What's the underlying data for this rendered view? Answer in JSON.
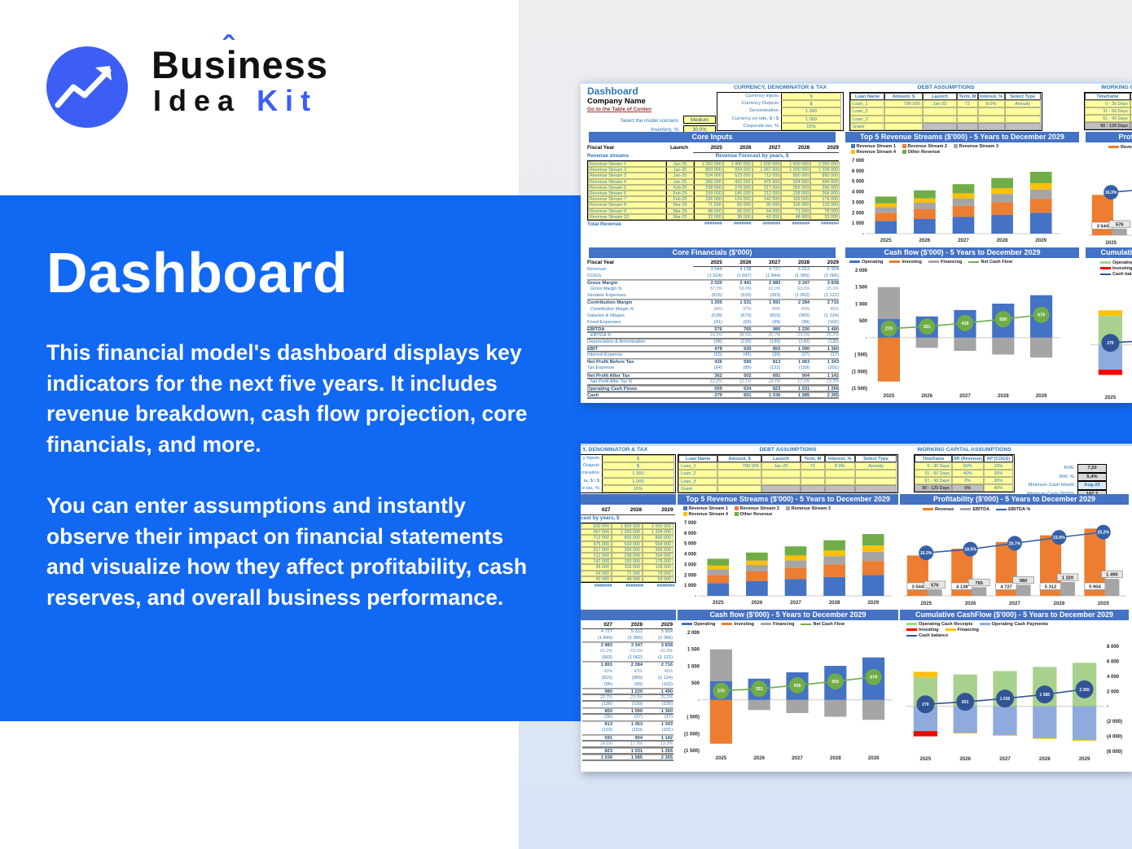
{
  "brand": {
    "word1_a": "Bus",
    "word1_i": "i",
    "word1_b": "ness",
    "caret": "ˆ",
    "word2": "Idea",
    "word3": "Kit"
  },
  "hero": {
    "title": "Dashboard",
    "para1": "This financial model's dashboard displays key indicators for the next five years. It includes revenue breakdown, cash flow projection, core financials, and more.",
    "para2": "You can enter assumptions and instantly observe their impact on financial statements and visualize how they affect profitability, cash reserves, and overall business performance."
  },
  "colors": {
    "accent_blue": "#1168f2",
    "logo_blue": "#3c5ef5",
    "banner": "#4472c4",
    "bar_blue": "#4472C4",
    "bar_orange": "#ED7D31",
    "bar_gray": "#A5A5A5",
    "bar_yellow": "#FFC000",
    "bar_green": "#70AD47",
    "bar_lightgreen": "#A9D18E",
    "bar_lightblue": "#8FAADC",
    "bar_red": "#FF0000",
    "line_navy": "#305496",
    "cell_yellow": "#ffff9e",
    "label_blue": "#2e75b6",
    "link_red": "#953634"
  },
  "dash": {
    "header": {
      "title": "Dashboard",
      "company": "Company Name",
      "link": "Go to the Table of Conten",
      "scenario_label": "Select the model scenario",
      "scenario_value": "Medium",
      "inventory_label": "Inventory, %",
      "inventory_value": "30.0%"
    },
    "currency": {
      "title": "CURRENCY, DENOMINATOR & TAX",
      "cut_title": "Y, DENOMINATOR & TAX",
      "rows": [
        [
          "Currency Inputs",
          "$"
        ],
        [
          "Currency Outputs",
          "$"
        ],
        [
          "Denomination",
          "1 000"
        ],
        [
          "Currency ex rate, $ / $",
          "1.000"
        ],
        [
          "Corporate tax, %",
          "15%"
        ]
      ],
      "cut_labels": [
        "y Inputs",
        "Outputs",
        "mination",
        "ta, $ / $",
        "e tax, %"
      ]
    },
    "debt": {
      "title": "DEBT ASSUMPTIONS",
      "headers": [
        "Loan Name",
        "Amount, $",
        "Launch",
        "Term, M",
        "Interest, %",
        "Select Type"
      ],
      "rows": [
        [
          "Loan_1",
          "700 000",
          "Jan-25",
          "72",
          "8.0%",
          "Annuity"
        ],
        [
          "Loan_2",
          "",
          "",
          "",
          "",
          ""
        ],
        [
          "Loan_3",
          "",
          "",
          "",
          "",
          ""
        ],
        [
          "Grant",
          "",
          "",
          "",
          "",
          ""
        ]
      ]
    },
    "wc": {
      "title": "WORKING CAPITAL ASSUMPTIONS",
      "headers": [
        "Timeframe",
        "AR (Revenue)",
        "AP (COGS)"
      ],
      "rows": [
        [
          "0 - 30 Days",
          "60%",
          "10%"
        ],
        [
          "31 - 60 Days",
          "40%",
          "20%"
        ],
        [
          "61 - 90 Days",
          "0%",
          "30%"
        ],
        [
          "90 - 120 Days",
          "0%",
          "40%"
        ]
      ]
    },
    "kpis": [
      [
        "ROE",
        "7,20"
      ],
      [
        "IRR, %",
        "5,4%"
      ],
      [
        "Minimum Cash Month",
        "Aug-25"
      ],
      [
        "Minimum Cash ($'000)",
        "187,2"
      ]
    ],
    "core_inputs": {
      "banner": "Core Inputs",
      "fiscal_year": "Fiscal Year",
      "launch": "Launch",
      "years": [
        "2025",
        "2026",
        "2027",
        "2028",
        "2029"
      ],
      "cut_years": [
        "027",
        "2028",
        "2029"
      ],
      "streams_label": "Revenue streams",
      "forecast_label": "Revenue Forecast by years, $",
      "cut_forecast_label": "cast by years, $",
      "total_label": "Total Revenue",
      "hash": "#######",
      "streams": [
        {
          "name": "Revenue Stream 1",
          "launch": "Jan-25",
          "v": [
            "1 200 000",
            "1 400 000",
            "1 600 000",
            "1 800 000",
            "2 000 000"
          ]
        },
        {
          "name": "Revenue Stream 2",
          "launch": "Jan-25",
          "v": [
            "800 000",
            "934 000",
            "1 067 000",
            "1 200 000",
            "1 334 000"
          ]
        },
        {
          "name": "Revenue Stream 3",
          "launch": "Jan-25",
          "v": [
            "534 000",
            "623 000",
            "712 000",
            "800 000",
            "890 000"
          ]
        },
        {
          "name": "Revenue Stream 4",
          "launch": "Jan-25",
          "v": [
            "356 000",
            "416 000",
            "475 000",
            "534 000",
            "594 000"
          ]
        },
        {
          "name": "Revenue Stream 5",
          "launch": "Feb-25",
          "v": [
            "238 000",
            "278 000",
            "317 000",
            "356 000",
            "396 000"
          ]
        },
        {
          "name": "Revenue Stream 6",
          "launch": "Feb-25",
          "v": [
            "159 000",
            "186 000",
            "212 000",
            "238 000",
            "264 000"
          ]
        },
        {
          "name": "Revenue Stream 7",
          "launch": "Feb-25",
          "v": [
            "106 000",
            "124 000",
            "142 000",
            "159 000",
            "176 000"
          ]
        },
        {
          "name": "Revenue Stream 8",
          "launch": "Mar-25",
          "v": [
            "71 000",
            "83 000",
            "95 000",
            "106 000",
            "118 000"
          ]
        },
        {
          "name": "Revenue Stream 9",
          "launch": "Mar-25",
          "v": [
            "48 000",
            "56 000",
            "64 000",
            "71 000",
            "79 000"
          ]
        },
        {
          "name": "Revenue Stream 10",
          "launch": "Mar-25",
          "v": [
            "32 000",
            "38 000",
            "43 000",
            "48 000",
            "53 000"
          ]
        }
      ],
      "cut_forecast": [
        [
          "600 000",
          "1 800 000",
          "2 000 000"
        ],
        [
          "067 000",
          "1 200 000",
          "1 334 000"
        ],
        [
          "712 000",
          "800 000",
          "890 000"
        ],
        [
          "475 000",
          "534 000",
          "594 000"
        ],
        [
          "317 000",
          "356 000",
          "396 000"
        ],
        [
          "212 000",
          "238 000",
          "264 000"
        ],
        [
          "142 000",
          "159 000",
          "176 000"
        ],
        [
          "95 000",
          "106 000",
          "118 000"
        ],
        [
          "64 000",
          "71 000",
          "79 000"
        ],
        [
          "43 000",
          "48 000",
          "53 000"
        ]
      ]
    },
    "financials": {
      "banner": "Core Financials ($'000)",
      "fiscal_year": "Fiscal Year",
      "rows": [
        {
          "l": "Revenue",
          "s": "p",
          "v": [
            "3 544",
            "4 138",
            "4 727",
            "5 312",
            "5 904"
          ]
        },
        {
          "l": "COGS",
          "s": "p u",
          "v": [
            "(1 524)",
            "(1 697)",
            "(1 844)",
            "(1 965)",
            "(2 066)"
          ]
        },
        {
          "l": "Gross Margin",
          "s": "b",
          "v": [
            "2 020",
            "2 441",
            "2 883",
            "3 347",
            "3 838"
          ]
        },
        {
          "l": "Gross Margin %",
          "s": "i",
          "v": [
            "57.0%",
            "59.0%",
            "61.0%",
            "63.0%",
            "65.0%"
          ]
        },
        {
          "l": "Variable Expenses",
          "s": "p u",
          "v": [
            "(815)",
            "(910)",
            "(993)",
            "(1 062)",
            "(1 122)"
          ]
        },
        {
          "l": "Contribution Margin",
          "s": "b",
          "v": [
            "1 205",
            "1 531",
            "1 891",
            "2 284",
            "2 716"
          ]
        },
        {
          "l": "Contribution Margin %",
          "s": "i",
          "v": [
            "34%",
            "37%",
            "40%",
            "43%",
            "46%"
          ]
        },
        {
          "l": "Salaries & Wages",
          "s": "p",
          "v": [
            "(538)",
            "(673)",
            "(815)",
            "(965)",
            "(1 124)"
          ]
        },
        {
          "l": "Fixed Expenses",
          "s": "p u",
          "v": [
            "(91)",
            "(93)",
            "(96)",
            "(99)",
            "(102)"
          ]
        },
        {
          "l": "EBITDA",
          "s": "b d",
          "v": [
            "576",
            "765",
            "980",
            "1 220",
            "1 490"
          ]
        },
        {
          "l": "EBITDA %",
          "s": "i d",
          "v": [
            "16.3%",
            "18.5%",
            "20.7%",
            "23.0%",
            "25.2%"
          ]
        },
        {
          "l": "Depreciation & Amortization",
          "s": "p u",
          "v": [
            "(98)",
            "(130)",
            "(130)",
            "(130)",
            "(130)"
          ]
        },
        {
          "l": "EBIT",
          "s": "b d",
          "v": [
            "478",
            "635",
            "850",
            "1 090",
            "1 360"
          ]
        },
        {
          "l": "Interest Expense",
          "s": "p u",
          "v": [
            "(53)",
            "(45)",
            "(36)",
            "(27)",
            "(17)"
          ]
        },
        {
          "l": "Net Profit Before Tax",
          "s": "b",
          "v": [
            "426",
            "590",
            "813",
            "1 063",
            "1 343"
          ]
        },
        {
          "l": "Tax Expense",
          "s": "p u",
          "v": [
            "(64)",
            "(89)",
            "(122)",
            "(159)",
            "(201)"
          ]
        },
        {
          "l": "Net Profit After Tax",
          "s": "b d",
          "v": [
            "362",
            "502",
            "691",
            "904",
            "1 142"
          ]
        },
        {
          "l": "Net Profit After Tax %",
          "s": "i d",
          "v": [
            "10.2%",
            "12.1%",
            "14.6%",
            "17.0%",
            "19.3%"
          ]
        },
        {
          "l": "Operating Cash Flows",
          "s": "b d",
          "v": [
            "559",
            "634",
            "823",
            "1 031",
            "1 266"
          ]
        },
        {
          "l": "Cash",
          "s": "b d",
          "v": [
            "270",
            "601",
            "1 036",
            "1 585",
            "2 265"
          ]
        }
      ]
    },
    "charts": {
      "top5": {
        "type": "bar",
        "banner": "Top 5 Revenue Streams ($'000) - 5 Years to December 2029",
        "categories": [
          "2025",
          "2026",
          "2027",
          "2028",
          "2029"
        ],
        "ymin": 0,
        "ymax": 7000,
        "yticks": [
          {
            "v": 7000,
            "t": "7 000"
          },
          {
            "v": 6000,
            "t": "6 000"
          },
          {
            "v": 5000,
            "t": "5 000"
          },
          {
            "v": 4000,
            "t": "4 000"
          },
          {
            "v": 3000,
            "t": "3 000"
          },
          {
            "v": 2000,
            "t": "2 000"
          },
          {
            "v": 1000,
            "t": "1 000"
          },
          {
            "v": 0,
            "t": "-"
          }
        ],
        "series": [
          {
            "name": "Revenue Stream 1",
            "color": "#4472C4",
            "values": [
              1200,
              1400,
              1600,
              1800,
              2000
            ]
          },
          {
            "name": "Revenue Stream 2",
            "color": "#ED7D31",
            "values": [
              800,
              934,
              1067,
              1200,
              1334
            ]
          },
          {
            "name": "Revenue Stream 3",
            "color": "#A5A5A5",
            "values": [
              534,
              623,
              712,
              800,
              890
            ]
          },
          {
            "name": "Revenue Stream 4",
            "color": "#FFC000",
            "values": [
              356,
              416,
              475,
              534,
              594
            ]
          },
          {
            "name": "Other Revenue",
            "color": "#70AD47",
            "values": [
              654,
              765,
              873,
              978,
              1086
            ]
          }
        ]
      },
      "cashflow": {
        "type": "bar",
        "banner": "Cash flow ($'000) - 5 Years to December 2029",
        "categories": [
          "2025",
          "2026",
          "2027",
          "2028",
          "2029"
        ],
        "ymin": -1500,
        "ymax": 2000,
        "yticks": [
          {
            "v": 2000,
            "t": "2 000"
          },
          {
            "v": 1500,
            "t": "1 500"
          },
          {
            "v": 1000,
            "t": "1 000"
          },
          {
            "v": 500,
            "t": "500"
          },
          {
            "v": 0,
            "t": "-"
          },
          {
            "v": -500,
            "t": "( 500)"
          },
          {
            "v": -1000,
            "t": "(1 000)"
          },
          {
            "v": -1500,
            "t": "(1 500)"
          }
        ],
        "series": [
          {
            "name": "Operating",
            "color": "#4472C4",
            "values": [
              560,
              630,
              820,
              1010,
              1260
            ]
          },
          {
            "name": "Investing",
            "color": "#ED7D31",
            "values": [
              -1300,
              0,
              0,
              0,
              0
            ]
          },
          {
            "name": "Financing",
            "color": "#A5A5A5",
            "values": [
              940,
              -300,
              -390,
              -500,
              -590
            ]
          }
        ],
        "line": {
          "name": "Net Cash Flow",
          "color": "#70AD47",
          "values": [
            270,
            331,
            435,
            550,
            679
          ],
          "labels": [
            "270",
            "331",
            "435",
            "550",
            "679"
          ]
        }
      },
      "profit": {
        "type": "bar",
        "banner": "Profitability ($'000) - 5 Years to December 2029",
        "categories": [
          "2025",
          "2026",
          "2027",
          "2028",
          "2029"
        ],
        "ymin": 0,
        "ymax": 6500,
        "yticks": [],
        "series": [
          {
            "name": "Revenue",
            "color": "#ED7D31",
            "values": [
              3544,
              4138,
              4727,
              5312,
              5904
            ],
            "labels": [
              "3 544",
              "4 138",
              "4 727",
              "5 312",
              "5 904"
            ]
          },
          {
            "name": "EBITDA",
            "color": "#A5A5A5",
            "values": [
              576,
              765,
              980,
              1220,
              1490
            ],
            "labels": [
              "576",
              "765",
              "980",
              "1 220",
              "1 490"
            ]
          }
        ],
        "line": {
          "name": "EBITDA %",
          "color": "#3560A8",
          "fracs": [
            0.58,
            0.63,
            0.71,
            0.79,
            0.86
          ],
          "labels": [
            "16.3%",
            "18.5%",
            "20.7%",
            "23.0%",
            "25.2%"
          ]
        }
      },
      "cumulative": {
        "type": "bar",
        "banner": "Cumulative CashFlow ($'000) - 5 Years to December 2029",
        "categories": [
          "2025",
          "2026",
          "2027",
          "2028",
          "2029"
        ],
        "ymin": -6000,
        "ymax": 8000,
        "yticks": [
          {
            "v": 8000,
            "t": "8 000"
          },
          {
            "v": 6000,
            "t": "6 000"
          },
          {
            "v": 4000,
            "t": "4 000"
          },
          {
            "v": 2000,
            "t": "2 000"
          },
          {
            "v": 0,
            "t": "-"
          },
          {
            "v": -2000,
            "t": "(2 000)"
          },
          {
            "v": -4000,
            "t": "(4 000)"
          },
          {
            "v": -6000,
            "t": "(6 000)"
          }
        ],
        "series": [
          {
            "name": "Operating Cash Receipts",
            "color": "#A9D18E",
            "values": [
              3900,
              4250,
              4700,
              5250,
              5800
            ]
          },
          {
            "name": "Operating Cash Payments",
            "color": "#8FAADC",
            "values": [
              -3300,
              -3550,
              -3850,
              -4250,
              -4500
            ]
          },
          {
            "name": "Investing",
            "color": "#FF0000",
            "values": [
              -700,
              0,
              0,
              0,
              0
            ]
          },
          {
            "name": "Financing",
            "color": "#FFC000",
            "values": [
              700,
              -80,
              -80,
              -100,
              -120
            ]
          }
        ],
        "line": {
          "name": "Cash balance",
          "color": "#305496",
          "values": [
            270,
            601,
            1036,
            1585,
            2265
          ],
          "labels": [
            "270",
            "601",
            "1 036",
            "1 585",
            "2 265"
          ]
        }
      }
    }
  }
}
